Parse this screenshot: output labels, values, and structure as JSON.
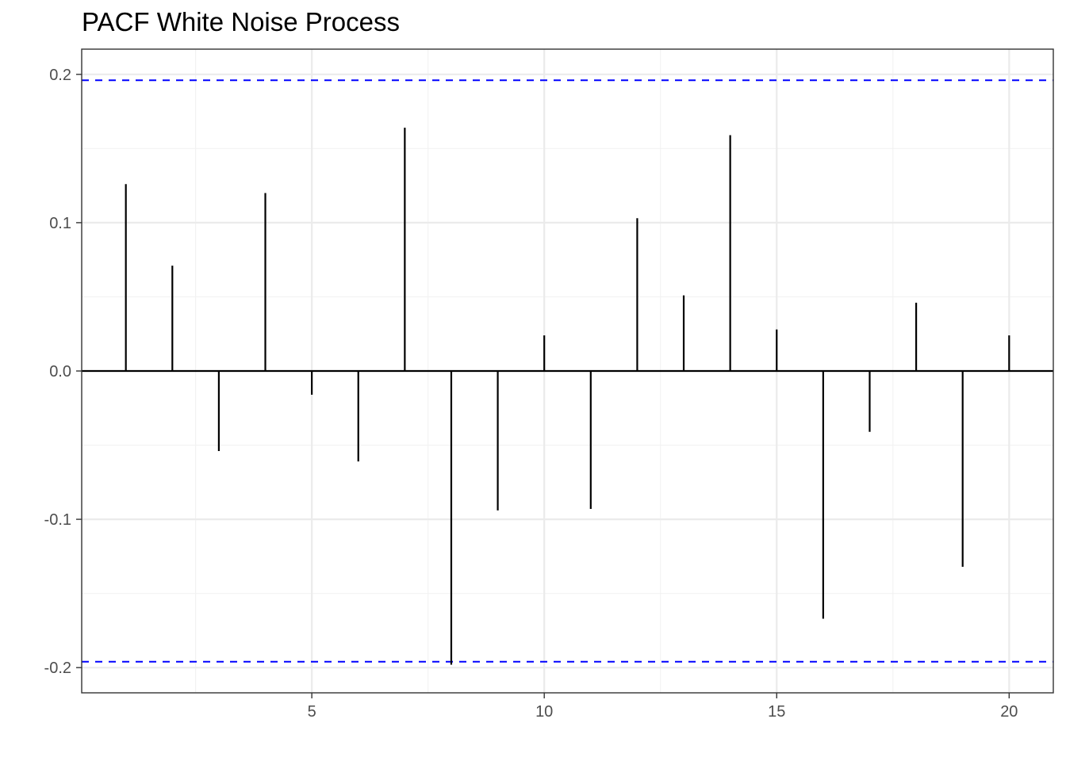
{
  "chart_data": {
    "type": "bar",
    "title": "PACF White Noise Process",
    "xlabel": "",
    "ylabel": "",
    "x": [
      1,
      2,
      3,
      4,
      5,
      6,
      7,
      8,
      9,
      10,
      11,
      12,
      13,
      14,
      15,
      16,
      17,
      18,
      19,
      20
    ],
    "values": [
      0.126,
      0.071,
      -0.054,
      0.12,
      -0.016,
      -0.061,
      0.164,
      -0.198,
      -0.094,
      0.024,
      -0.093,
      0.103,
      0.051,
      0.159,
      0.028,
      -0.167,
      -0.041,
      0.046,
      -0.132,
      0.024
    ],
    "confidence_limits": [
      0.196,
      -0.196
    ],
    "xlim": [
      0.05,
      20.95
    ],
    "ylim": [
      -0.217,
      0.217
    ],
    "x_ticks": [
      5,
      10,
      15,
      20
    ],
    "x_tick_labels": [
      "5",
      "10",
      "15",
      "20"
    ],
    "y_ticks": [
      -0.2,
      -0.1,
      0.0,
      0.1,
      0.2
    ],
    "y_tick_labels": [
      "-0.2",
      "-0.1",
      "0.0",
      "0.1",
      "0.2"
    ],
    "grid": true,
    "colors": {
      "bars": "#000000",
      "confidence_lines": "#0000ff",
      "zero_line": "#000000",
      "grid_major": "#ebebeb",
      "grid_minor": "#f2f2f2",
      "panel_border": "#333333"
    }
  }
}
